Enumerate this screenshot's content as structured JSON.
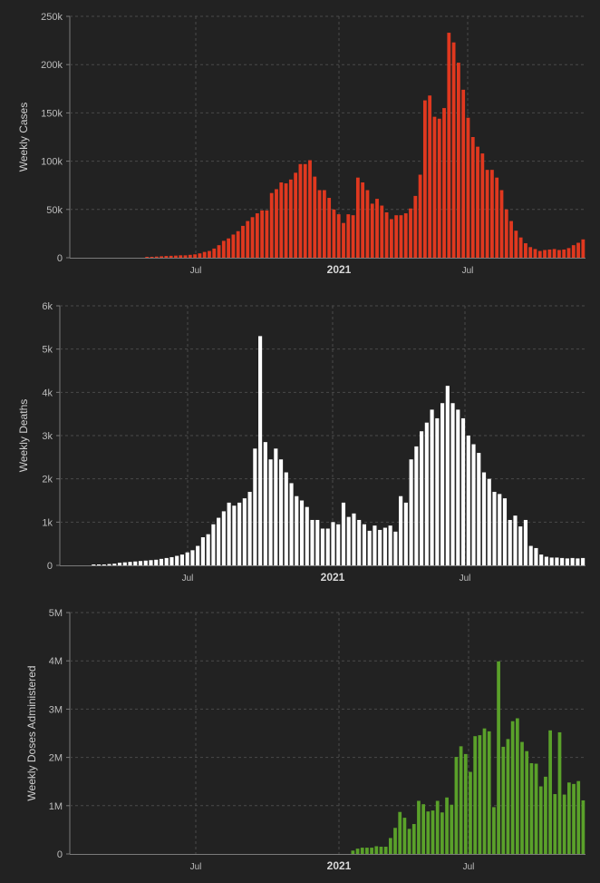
{
  "colors": {
    "background": "#222222",
    "grid": "#4a4a4a",
    "axis": "#7a7a7a",
    "text": "#bdbdbd",
    "cases": "#e0381f",
    "deaths": "#ffffff",
    "doses": "#5aa12a"
  },
  "chart_data": [
    {
      "type": "bar",
      "ylabel": "Weekly Cases",
      "ylim": [
        0,
        250000
      ],
      "yticks": [
        {
          "value": 0,
          "label": "0"
        },
        {
          "value": 50000,
          "label": "50k"
        },
        {
          "value": 100000,
          "label": "100k"
        },
        {
          "value": 150000,
          "label": "150k"
        },
        {
          "value": 200000,
          "label": "200k"
        },
        {
          "value": 250000,
          "label": "250k"
        }
      ],
      "xticks": [
        {
          "label": "Jul",
          "bold": false
        },
        {
          "label": "2021",
          "bold": true
        },
        {
          "label": "Jul",
          "bold": false
        }
      ],
      "grid": true,
      "color_key": "cases",
      "values": [
        0,
        0,
        0,
        0,
        0,
        0,
        0,
        0,
        0,
        500,
        800,
        1200,
        1500,
        1800,
        2000,
        2200,
        2500,
        2500,
        3000,
        3500,
        4500,
        6000,
        7000,
        9500,
        13000,
        17500,
        20000,
        24000,
        27500,
        33000,
        38000,
        42000,
        46000,
        49000,
        49000,
        67000,
        71000,
        78000,
        77000,
        81000,
        88000,
        97000,
        97000,
        101000,
        84000,
        70000,
        70000,
        62000,
        50000,
        45000,
        36000,
        45000,
        44000,
        83000,
        78000,
        70000,
        56000,
        61000,
        54000,
        47000,
        40000,
        44000,
        44000,
        46000,
        51000,
        64000,
        86000,
        163000,
        168000,
        146000,
        144000,
        155000,
        233000,
        223000,
        202000,
        174000,
        145000,
        125000,
        115000,
        108000,
        91000,
        91000,
        83000,
        70000,
        50000,
        38000,
        28000,
        21000,
        15000,
        11000,
        9000,
        7000,
        8000,
        8500,
        9000,
        8000,
        8500,
        10000,
        13000,
        15500,
        19000
      ]
    },
    {
      "type": "bar",
      "ylabel": "Weekly Deaths",
      "ylim": [
        0,
        6000
      ],
      "yticks": [
        {
          "value": 0,
          "label": "0"
        },
        {
          "value": 1000,
          "label": "1k"
        },
        {
          "value": 2000,
          "label": "2k"
        },
        {
          "value": 3000,
          "label": "3k"
        },
        {
          "value": 4000,
          "label": "4k"
        },
        {
          "value": 5000,
          "label": "5k"
        },
        {
          "value": 6000,
          "label": "6k"
        }
      ],
      "xticks": [
        {
          "label": "Jul",
          "bold": false
        },
        {
          "label": "2021",
          "bold": true
        },
        {
          "label": "Jul",
          "bold": false
        }
      ],
      "grid": true,
      "color_key": "deaths",
      "values": [
        0,
        0,
        0,
        0,
        0,
        0,
        10,
        20,
        20,
        30,
        40,
        60,
        70,
        80,
        90,
        100,
        110,
        120,
        130,
        150,
        170,
        190,
        220,
        250,
        300,
        350,
        450,
        650,
        720,
        950,
        1100,
        1250,
        1450,
        1380,
        1450,
        1550,
        1700,
        2700,
        5300,
        2850,
        2450,
        2700,
        2450,
        2150,
        1900,
        1600,
        1500,
        1350,
        1050,
        1050,
        850,
        850,
        1000,
        950,
        1450,
        1120,
        1200,
        1050,
        950,
        800,
        920,
        820,
        870,
        920,
        780,
        1600,
        1450,
        2450,
        2750,
        3100,
        3300,
        3600,
        3400,
        3750,
        4150,
        3750,
        3600,
        3400,
        3000,
        2800,
        2600,
        2150,
        2000,
        1700,
        1650,
        1550,
        1050,
        1150,
        900,
        1050,
        450,
        400,
        250,
        200,
        180,
        180,
        170,
        160,
        170,
        160,
        170
      ]
    },
    {
      "type": "bar",
      "ylabel": "Weekly Doses Administered",
      "ylim": [
        0,
        5000000
      ],
      "yticks": [
        {
          "value": 0,
          "label": "0"
        },
        {
          "value": 1000000,
          "label": "1M"
        },
        {
          "value": 2000000,
          "label": "2M"
        },
        {
          "value": 3000000,
          "label": "3M"
        },
        {
          "value": 4000000,
          "label": "4M"
        },
        {
          "value": 5000000,
          "label": "5M"
        }
      ],
      "xticks": [
        {
          "label": "Jul",
          "bold": false
        },
        {
          "label": "2021",
          "bold": true
        },
        {
          "label": "Jul",
          "bold": false
        }
      ],
      "grid": true,
      "color_key": "doses",
      "values": [
        0,
        0,
        0,
        0,
        0,
        0,
        0,
        0,
        0,
        0,
        0,
        0,
        0,
        0,
        0,
        0,
        0,
        0,
        0,
        0,
        0,
        0,
        0,
        0,
        0,
        0,
        0,
        0,
        0,
        0,
        0,
        0,
        0,
        0,
        0,
        0,
        0,
        0,
        0,
        0,
        0,
        0,
        0,
        0,
        0,
        0,
        0,
        0,
        0,
        0,
        0,
        0,
        0,
        70000,
        110000,
        130000,
        130000,
        130000,
        160000,
        150000,
        150000,
        330000,
        540000,
        870000,
        750000,
        520000,
        620000,
        1100000,
        1030000,
        880000,
        900000,
        1100000,
        860000,
        1170000,
        1020000,
        2010000,
        2230000,
        2070000,
        1700000,
        2440000,
        2460000,
        2600000,
        2540000,
        970000,
        3990000,
        2220000,
        2380000,
        2750000,
        2810000,
        2320000,
        2130000,
        1880000,
        1870000,
        1400000,
        1600000,
        2560000,
        1240000,
        2520000,
        1230000,
        1480000,
        1450000,
        1510000,
        1110000
      ]
    }
  ]
}
